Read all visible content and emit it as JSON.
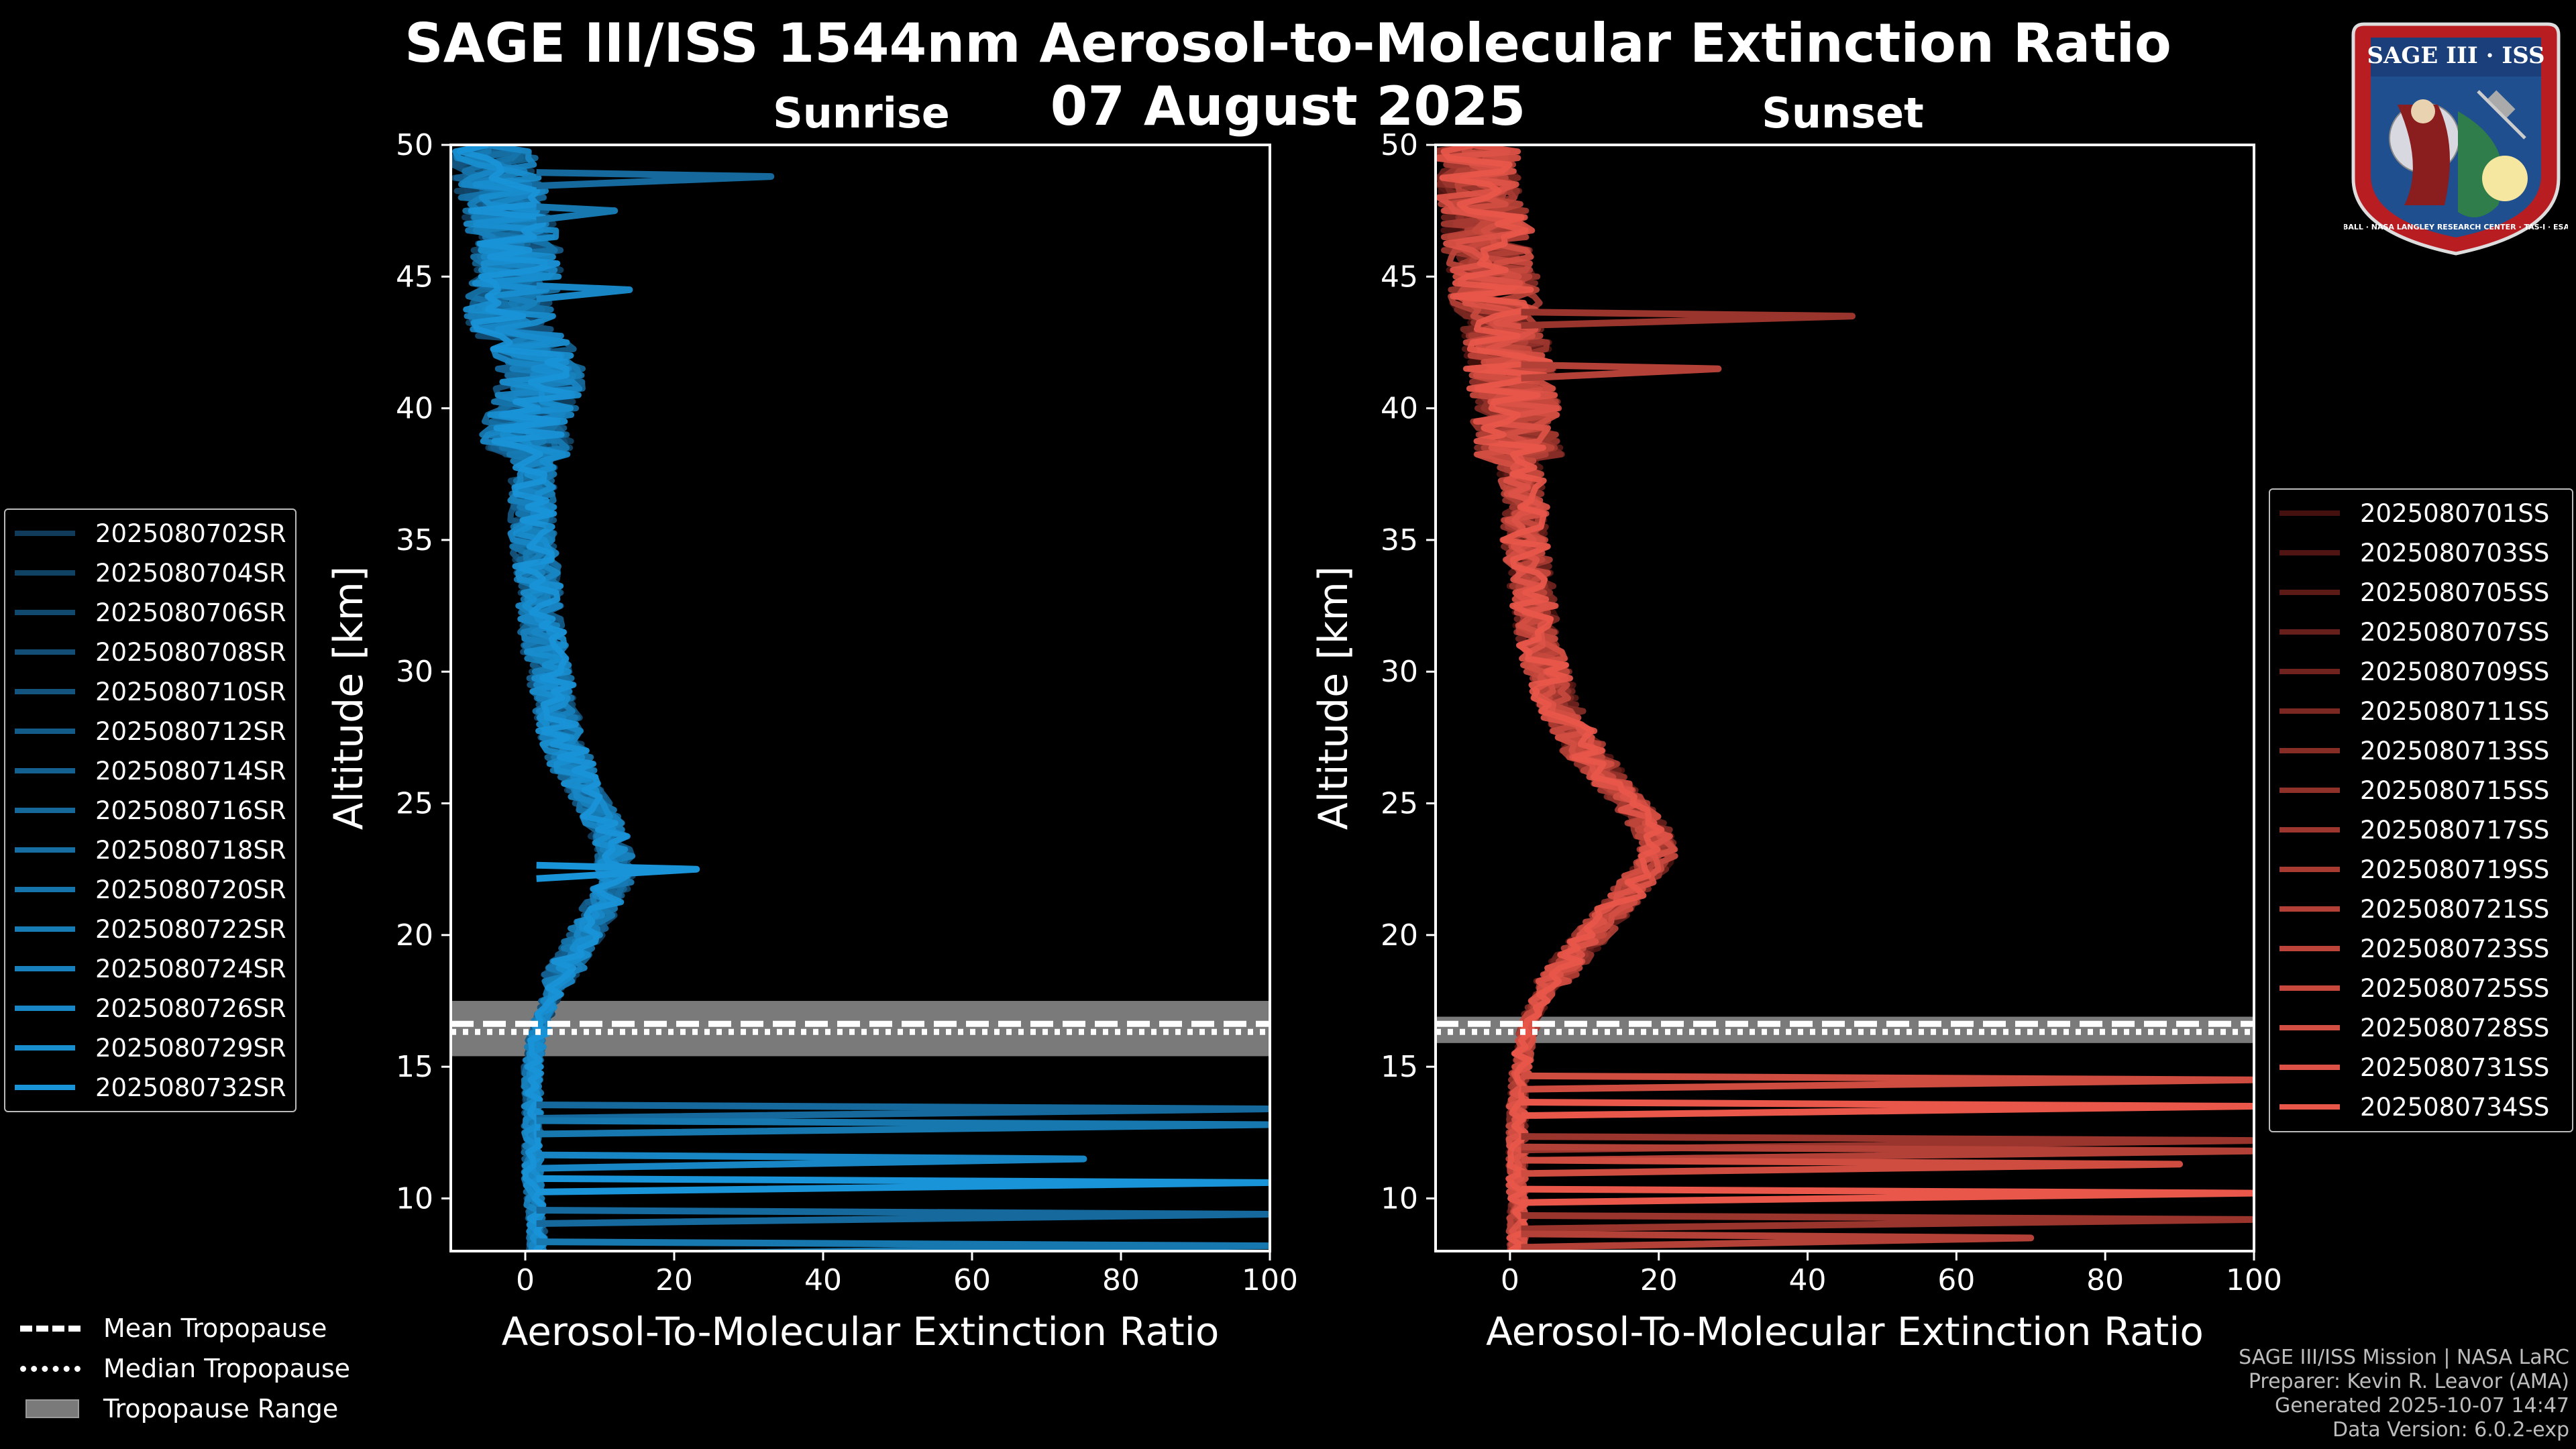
{
  "header": {
    "title_line1": "SAGE III/ISS 1544nm Aerosol-to-Molecular Extinction Ratio",
    "title_line2": "07 August 2025"
  },
  "logo": {
    "text_top": "SAGE III · ISS",
    "text_ring": "BALL · NASA LANGLEY RESEARCH CENTER · TAS-I · ESA",
    "colors": {
      "ring": "#b81d22",
      "field": "#1f4f8f",
      "banner": "#1b3f7a"
    }
  },
  "legend": {
    "sunrise": [
      "2025080702SR",
      "2025080704SR",
      "2025080706SR",
      "2025080708SR",
      "2025080710SR",
      "2025080712SR",
      "2025080714SR",
      "2025080716SR",
      "2025080718SR",
      "2025080720SR",
      "2025080722SR",
      "2025080724SR",
      "2025080726SR",
      "2025080729SR",
      "2025080732SR"
    ],
    "sunset": [
      "2025080701SS",
      "2025080703SS",
      "2025080705SS",
      "2025080707SS",
      "2025080709SS",
      "2025080711SS",
      "2025080713SS",
      "2025080715SS",
      "2025080717SS",
      "2025080719SS",
      "2025080721SS",
      "2025080723SS",
      "2025080725SS",
      "2025080728SS",
      "2025080731SS",
      "2025080734SS"
    ],
    "tropopause": [
      "Mean Tropopause",
      "Median Tropopause",
      "Tropopause Range"
    ]
  },
  "credits": [
    "SAGE III/ISS Mission | NASA LaRC",
    "Preparer: Kevin R. Leavor (AMA)",
    "Generated 2025-10-07 14:47",
    "Data Version: 6.0.2-exp"
  ],
  "chart_data": [
    {
      "type": "line",
      "title": "Sunrise",
      "xlabel": "Aerosol-To-Molecular Extinction Ratio",
      "ylabel": "Altitude [km]",
      "xlim": [
        -10,
        100
      ],
      "ylim": [
        8,
        50
      ],
      "xticks": [
        0,
        20,
        40,
        60,
        80,
        100
      ],
      "yticks": [
        10,
        15,
        20,
        25,
        30,
        35,
        40,
        45,
        50
      ],
      "color": "#1a94d8",
      "color_dark": "#0f3552",
      "tropopause": {
        "mean": 16.5,
        "median": 16.5,
        "range": [
          15.4,
          17.5
        ]
      },
      "series_count": 15,
      "mean_profile": {
        "altitude": [
          8,
          9,
          10,
          11,
          12,
          13,
          14,
          15,
          16,
          17,
          18,
          19,
          20,
          21,
          22,
          23,
          24,
          25,
          26,
          27,
          28,
          29,
          30,
          31,
          32,
          33,
          34,
          35,
          36,
          37,
          38,
          39,
          40,
          41,
          42,
          43,
          44,
          45,
          46,
          47,
          48,
          49,
          50
        ],
        "ratio": [
          1.5,
          1.5,
          1.2,
          1.0,
          1.0,
          1.0,
          1.0,
          1.0,
          1.5,
          2.5,
          4.0,
          6.0,
          8.0,
          10.0,
          12.0,
          12.0,
          11.0,
          9.0,
          7.0,
          5.5,
          4.5,
          4.0,
          3.0,
          2.5,
          2.0,
          2.0,
          1.5,
          1.0,
          1.0,
          1.0,
          1.0,
          0.0,
          1.0,
          2.0,
          2.0,
          -2.0,
          -2.0,
          -1.0,
          -1.0,
          -2.0,
          -3.0,
          -4.0,
          -5.0
        ]
      },
      "spikes": [
        {
          "altitude": 48.8,
          "ratio": 33
        },
        {
          "altitude": 47.5,
          "ratio": 12
        },
        {
          "altitude": 44.5,
          "ratio": 14
        },
        {
          "altitude": 22.5,
          "ratio": 23
        },
        {
          "altitude": 13.4,
          "ratio": 100
        },
        {
          "altitude": 12.8,
          "ratio": 100
        },
        {
          "altitude": 11.5,
          "ratio": 75
        },
        {
          "altitude": 10.6,
          "ratio": 100
        },
        {
          "altitude": 9.4,
          "ratio": 100
        },
        {
          "altitude": 8.2,
          "ratio": 100
        }
      ]
    },
    {
      "type": "line",
      "title": "Sunset",
      "xlabel": "Aerosol-To-Molecular Extinction Ratio",
      "ylabel": "Altitude [km]",
      "xlim": [
        -10,
        100
      ],
      "ylim": [
        8,
        50
      ],
      "xticks": [
        0,
        20,
        40,
        60,
        80,
        100
      ],
      "yticks": [
        10,
        15,
        20,
        25,
        30,
        35,
        40,
        45,
        50
      ],
      "color": "#e8574a",
      "color_dark": "#3a0c0a",
      "tropopause": {
        "mean": 16.5,
        "median": 16.5,
        "range": [
          15.9,
          16.9
        ]
      },
      "series_count": 16,
      "mean_profile": {
        "altitude": [
          8,
          9,
          10,
          11,
          12,
          13,
          14,
          15,
          16,
          17,
          18,
          19,
          20,
          21,
          22,
          23,
          24,
          25,
          26,
          27,
          28,
          29,
          30,
          31,
          32,
          33,
          34,
          35,
          36,
          37,
          38,
          39,
          40,
          41,
          42,
          43,
          44,
          45,
          46,
          47,
          48,
          49,
          50
        ],
        "ratio": [
          1.0,
          1.0,
          1.0,
          1.0,
          1.0,
          1.0,
          1.0,
          1.5,
          2.0,
          3.0,
          5.0,
          8.0,
          11.0,
          14.0,
          17.0,
          20.0,
          19.0,
          16.0,
          13.0,
          10.0,
          8.0,
          6.0,
          5.0,
          4.0,
          3.5,
          3.0,
          2.5,
          2.0,
          2.0,
          2.0,
          1.0,
          1.0,
          1.0,
          0.0,
          0.0,
          -1.0,
          -2.0,
          -2.0,
          -3.0,
          -3.0,
          -4.0,
          -4.0,
          -5.0
        ]
      },
      "spikes": [
        {
          "altitude": 43.5,
          "ratio": 46
        },
        {
          "altitude": 41.5,
          "ratio": 28
        },
        {
          "altitude": 14.5,
          "ratio": 100
        },
        {
          "altitude": 13.5,
          "ratio": 100
        },
        {
          "altitude": 12.2,
          "ratio": 100
        },
        {
          "altitude": 11.8,
          "ratio": 100
        },
        {
          "altitude": 11.3,
          "ratio": 90
        },
        {
          "altitude": 10.2,
          "ratio": 100
        },
        {
          "altitude": 9.2,
          "ratio": 100
        },
        {
          "altitude": 8.5,
          "ratio": 70
        }
      ]
    }
  ]
}
